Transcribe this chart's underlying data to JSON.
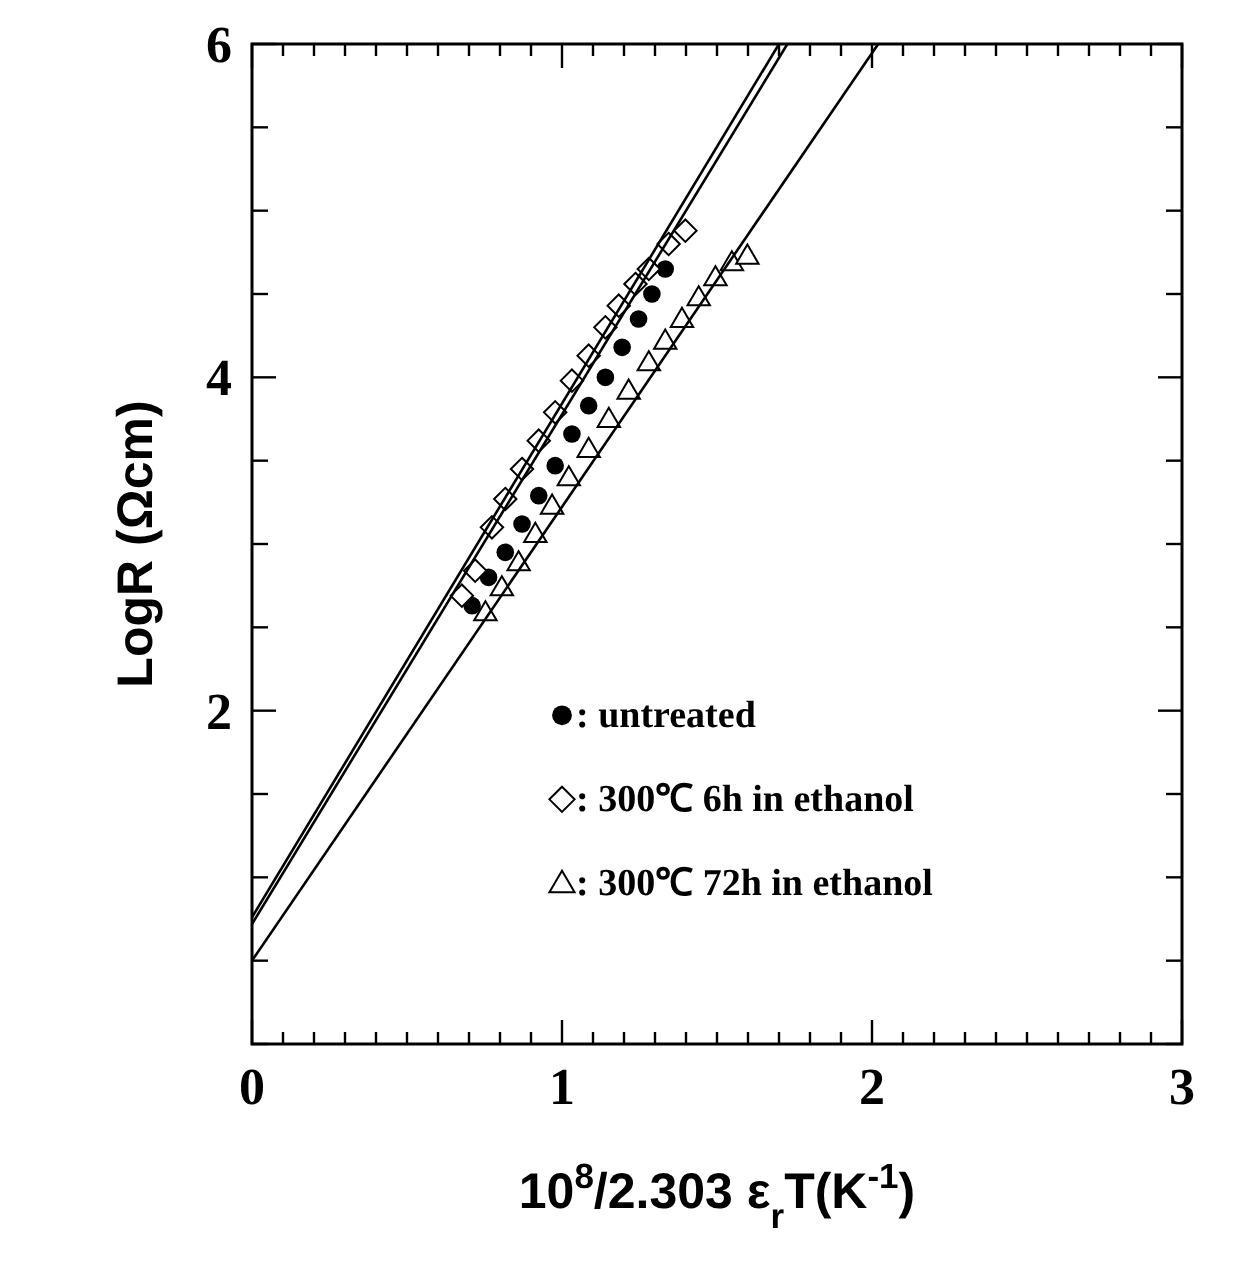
{
  "chart_data": {
    "type": "scatter",
    "xlabel": "10$^{8}$/2.303 ε$_{r}$T(K$^{-1}$)",
    "ylabel": "LogR (Ωcm)",
    "xlim": [
      0,
      3
    ],
    "ylim": [
      0,
      6
    ],
    "xticks": [
      0,
      {
        "value": 0.1,
        "label": null
      },
      {
        "value": 0.2,
        "label": null
      },
      {
        "value": 0.3,
        "label": null
      },
      {
        "value": 0.4,
        "label": null
      },
      {
        "value": 0.5,
        "label": null
      },
      {
        "value": 0.6,
        "label": null
      },
      {
        "value": 0.7,
        "label": null
      },
      {
        "value": 0.8,
        "label": null
      },
      {
        "value": 0.9,
        "label": null
      },
      1,
      {
        "value": 1.1,
        "label": null
      },
      {
        "value": 1.2,
        "label": null
      },
      {
        "value": 1.3,
        "label": null
      },
      {
        "value": 1.4,
        "label": null
      },
      {
        "value": 1.5,
        "label": null
      },
      {
        "value": 1.6,
        "label": null
      },
      {
        "value": 1.7,
        "label": null
      },
      {
        "value": 1.8,
        "label": null
      },
      {
        "value": 1.9,
        "label": null
      },
      2,
      {
        "value": 2.1,
        "label": null
      },
      {
        "value": 2.2,
        "label": null
      },
      {
        "value": 2.3,
        "label": null
      },
      {
        "value": 2.4,
        "label": null
      },
      {
        "value": 2.5,
        "label": null
      },
      {
        "value": 2.6,
        "label": null
      },
      {
        "value": 2.7,
        "label": null
      },
      {
        "value": 2.8,
        "label": null
      },
      {
        "value": 2.9,
        "label": null
      },
      3
    ],
    "yticks": [
      {
        "value": 0,
        "label": null
      },
      {
        "value": 0.5,
        "label": null
      },
      {
        "value": 1,
        "label": null
      },
      {
        "value": 1.5,
        "label": null
      },
      2,
      {
        "value": 2.5,
        "label": null
      },
      {
        "value": 3,
        "label": null
      },
      {
        "value": 3.5,
        "label": null
      },
      4,
      {
        "value": 4.5,
        "label": null
      },
      {
        "value": 5,
        "label": null
      },
      {
        "value": 5.5,
        "label": null
      },
      6
    ],
    "grid": false,
    "legend": "bottom right",
    "series": [
      {
        "name": ": untreated",
        "marker": "circle",
        "color": "#000000",
        "x": [
          0.71,
          0.763,
          0.817,
          0.871,
          0.925,
          0.978,
          1.032,
          1.086,
          1.14,
          1.194,
          1.247,
          1.29,
          1.333
        ],
        "values": [
          2.63,
          2.8,
          2.95,
          3.12,
          3.29,
          3.47,
          3.66,
          3.83,
          4.0,
          4.18,
          4.35,
          4.5,
          4.65
        ]
      },
      {
        "name": ": 300℃ 6h in ethanol",
        "marker": "diamond",
        "color": "#000000",
        "x": [
          0.677,
          0.72,
          0.774,
          0.817,
          0.871,
          0.925,
          0.978,
          1.032,
          1.086,
          1.14,
          1.183,
          1.237,
          1.28,
          1.344,
          1.398
        ],
        "values": [
          2.69,
          2.84,
          3.1,
          3.27,
          3.45,
          3.62,
          3.79,
          3.98,
          4.13,
          4.3,
          4.43,
          4.56,
          4.65,
          4.8,
          4.88
        ]
      },
      {
        "name": ": 300℃ 72h in ethanol",
        "marker": "triangle",
        "color": "#000000",
        "x": [
          0.753,
          0.806,
          0.86,
          0.914,
          0.968,
          1.022,
          1.086,
          1.151,
          1.215,
          1.28,
          1.333,
          1.387,
          1.441,
          1.495,
          1.548,
          1.598
        ],
        "values": [
          2.59,
          2.74,
          2.89,
          3.06,
          3.23,
          3.4,
          3.57,
          3.75,
          3.92,
          4.09,
          4.22,
          4.35,
          4.48,
          4.6,
          4.69,
          4.73
        ]
      },
      {
        "type": "line",
        "marker": "none",
        "color": "#000000",
        "x": [
          0,
          1.7
        ],
        "values": [
          0.76,
          6
        ]
      },
      {
        "type": "line",
        "marker": "none",
        "color": "#000000",
        "x": [
          0,
          1.727
        ],
        "values": [
          0.72,
          6
        ]
      },
      {
        "type": "line",
        "marker": "none",
        "color": "#000000",
        "x": [
          0,
          2.02
        ],
        "values": [
          0.5,
          6
        ]
      }
    ]
  }
}
